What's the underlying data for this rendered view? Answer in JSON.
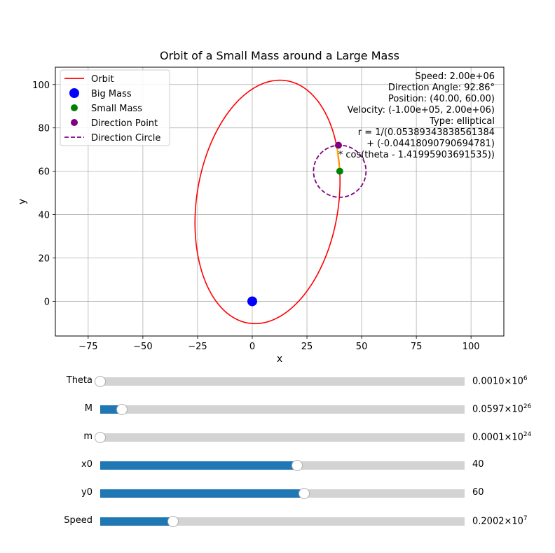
{
  "chart_data": {
    "type": "line",
    "title": "Orbit of a Small Mass around a Large Mass",
    "xlabel": "x",
    "ylabel": "y",
    "xlim": [
      -90,
      115
    ],
    "ylim": [
      -16,
      108
    ],
    "xticks": [
      -75,
      -50,
      -25,
      0,
      25,
      50,
      75,
      100
    ],
    "yticks": [
      0,
      20,
      40,
      60,
      80,
      100
    ],
    "grid": true,
    "legend_placement": "top-left",
    "legend": [
      {
        "label": "Orbit",
        "kind": "line",
        "color": "#ff0000"
      },
      {
        "label": "Big Mass",
        "kind": "marker-large",
        "color": "#0000ff"
      },
      {
        "label": "Small Mass",
        "kind": "marker",
        "color": "#008000"
      },
      {
        "label": "Direction Point",
        "kind": "marker",
        "color": "#800080"
      },
      {
        "label": "Direction Circle",
        "kind": "dashed",
        "color": "#800080"
      }
    ],
    "orbit": {
      "A": 0.0538934383856138,
      "B": -0.044180907906947,
      "theta0": 1.41995903691535,
      "color": "#ff0000"
    },
    "big_mass": {
      "x": 0,
      "y": 0,
      "color": "#0000ff"
    },
    "small_mass": {
      "x": 40,
      "y": 60,
      "color": "#008000"
    },
    "direction_point": {
      "x": 39.4,
      "y": 72,
      "color": "#800080"
    },
    "direction_circle": {
      "cx": 40,
      "cy": 60,
      "r": 12,
      "color": "#800080"
    },
    "velocity_arrow": {
      "from": [
        40,
        60
      ],
      "to": [
        38.6,
        72.5
      ],
      "color": "#ffa500"
    },
    "annotation": [
      "Speed: 2.00e+06",
      "Direction Angle: 92.86°",
      "Position: (40.00, 60.00)",
      "Velocity: (-1.00e+05, 2.00e+06)",
      "Type: elliptical",
      "r = 1/(0.05389343838561384",
      "+ (-0.04418090790694781)",
      "* cos(theta - 1.41995903691535))"
    ]
  },
  "sliders": [
    {
      "label": "Theta",
      "fraction": 0.0,
      "value_main": "0.0010×10",
      "value_exp": "6"
    },
    {
      "label": "M",
      "fraction": 0.06,
      "value_main": "0.0597×10",
      "value_exp": "26"
    },
    {
      "label": "m",
      "fraction": 0.0,
      "value_main": "0.0001×10",
      "value_exp": "24"
    },
    {
      "label": "x0",
      "fraction": 0.54,
      "value_main": "40",
      "value_exp": ""
    },
    {
      "label": "y0",
      "fraction": 0.56,
      "value_main": "60",
      "value_exp": ""
    },
    {
      "label": "Speed",
      "fraction": 0.2,
      "value_main": "0.2002×10",
      "value_exp": "7"
    }
  ]
}
